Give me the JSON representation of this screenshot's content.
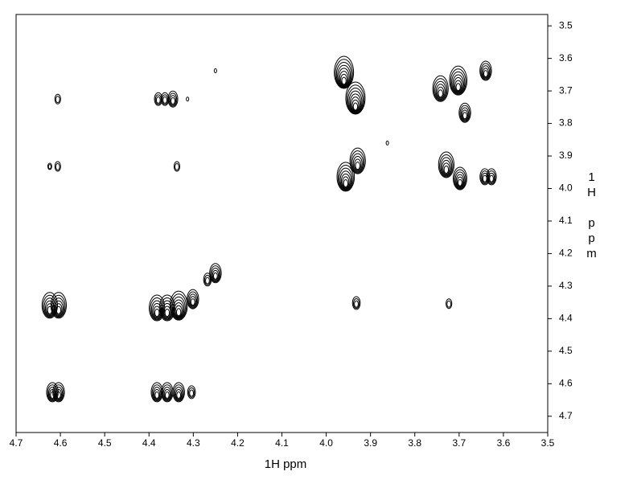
{
  "chart_data": {
    "type": "contour",
    "x_label": "1H ppm",
    "y_label": "1H ppm",
    "xlim": [
      4.7,
      3.5
    ],
    "ylim": [
      3.465,
      4.75
    ],
    "xticks": [
      4.7,
      4.6,
      4.5,
      4.4,
      4.3,
      4.2,
      4.1,
      {
        "value": 4,
        "label": "4.0"
      },
      3.9,
      3.8,
      3.7,
      3.6,
      3.5
    ],
    "yticks": [
      3.5,
      3.6,
      3.7,
      3.8,
      3.9,
      {
        "value": 4,
        "label": "4.0"
      },
      4.1,
      4.2,
      4.3,
      4.4,
      4.5,
      4.6,
      4.7
    ],
    "color": "#000000",
    "x": [
      4.606,
      4.624,
      4.606,
      4.379,
      4.364,
      4.346,
      4.313,
      4.337,
      4.25,
      3.96,
      3.934,
      3.862,
      3.742,
      3.702,
      3.687,
      3.64,
      3.956,
      3.929,
      3.729,
      3.698,
      3.642,
      3.627,
      4.624,
      4.604,
      4.382,
      4.359,
      4.333,
      4.301,
      4.25,
      4.268,
      3.932,
      3.723,
      4.618,
      4.604,
      4.382,
      4.359,
      4.333,
      4.304
    ],
    "y": [
      3.725,
      3.932,
      3.932,
      3.725,
      3.725,
      3.725,
      3.725,
      3.932,
      3.638,
      3.643,
      3.722,
      3.86,
      3.693,
      3.668,
      3.767,
      3.638,
      3.964,
      3.915,
      3.927,
      3.969,
      3.964,
      3.964,
      4.359,
      4.359,
      4.367,
      4.367,
      4.36,
      4.34,
      4.26,
      4.28,
      4.352,
      4.354,
      4.626,
      4.626,
      4.626,
      4.626,
      4.626,
      4.626
    ],
    "intensity": [
      3,
      2,
      3,
      4,
      4,
      5,
      1,
      3,
      1,
      10,
      10,
      1,
      8,
      9,
      6,
      6,
      9,
      8,
      8,
      7,
      5,
      5,
      8,
      8,
      8,
      8,
      9,
      6,
      6,
      4,
      4,
      3,
      6,
      6,
      6,
      6,
      6,
      4
    ]
  }
}
